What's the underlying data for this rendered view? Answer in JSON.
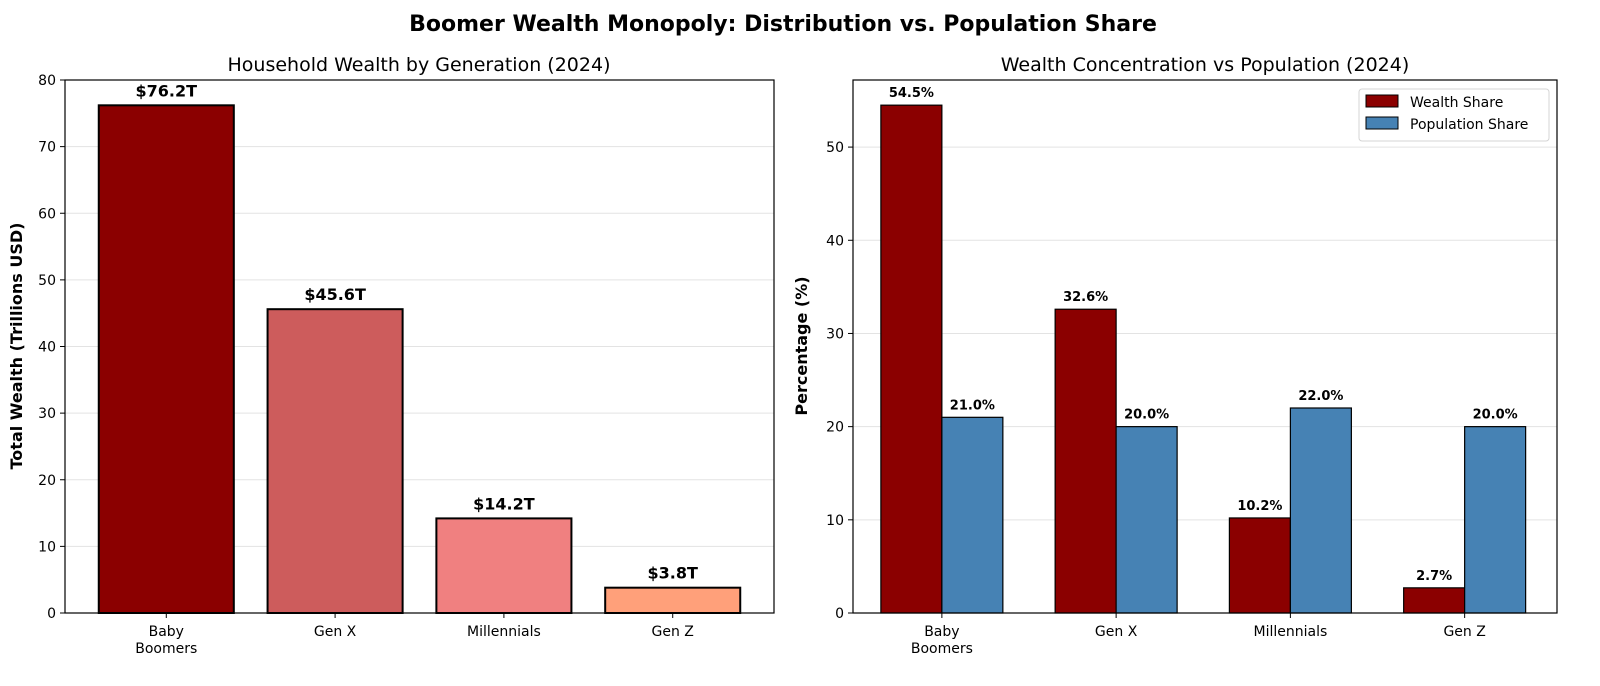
{
  "suptitle": "Boomer Wealth Monopoly: Distribution vs. Population Share",
  "chart_data": [
    {
      "type": "bar",
      "title": "Household Wealth by Generation (2024)",
      "xlabel": "",
      "ylabel": "Total Wealth (Trillions USD)",
      "categories": [
        "Baby\nBoomers",
        "Gen X",
        "Millennials",
        "Gen Z"
      ],
      "values": [
        76.2,
        45.6,
        14.2,
        3.8
      ],
      "data_labels": [
        "$76.2T",
        "$45.6T",
        "$14.2T",
        "$3.8T"
      ],
      "colors": [
        "#8b0000",
        "#cd5c5c",
        "#f08080",
        "#ffa07a"
      ],
      "ylim": [
        0,
        80
      ],
      "yticks": [
        0,
        10,
        20,
        30,
        40,
        50,
        60,
        70,
        80
      ],
      "grid": "y"
    },
    {
      "type": "bar",
      "title": "Wealth Concentration vs Population (2024)",
      "xlabel": "",
      "ylabel": "Percentage (%)",
      "categories": [
        "Baby\nBoomers",
        "Gen X",
        "Millennials",
        "Gen Z"
      ],
      "series": [
        {
          "name": "Wealth Share",
          "values": [
            54.5,
            32.6,
            10.2,
            2.7
          ],
          "data_labels": [
            "54.5%",
            "32.6%",
            "10.2%",
            "2.7%"
          ],
          "color": "#8b0000"
        },
        {
          "name": "Population Share",
          "values": [
            21.0,
            20.0,
            22.0,
            20.0
          ],
          "data_labels": [
            "21.0%",
            "20.0%",
            "22.0%",
            "20.0%"
          ],
          "color": "#4682b4"
        }
      ],
      "ylim": [
        0,
        57.2
      ],
      "yticks": [
        0,
        10,
        20,
        30,
        40,
        50
      ],
      "legend": "top-right",
      "grid": "y"
    }
  ]
}
